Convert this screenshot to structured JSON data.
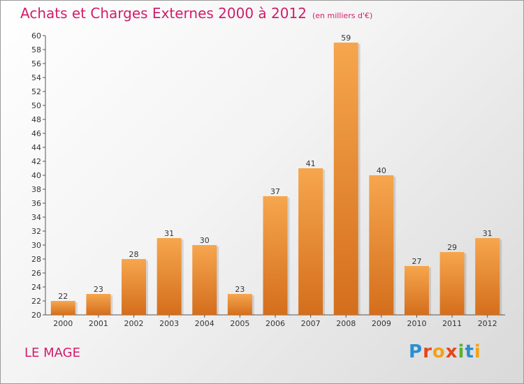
{
  "header": {
    "title": "Achats et Charges Externes 2000 à 2012",
    "subtitle": "(en milliers d'€)"
  },
  "footer": {
    "place": "LE MAGE",
    "logo": "Proxiti"
  },
  "colors": {
    "title": "#d21c6a",
    "bar_light": "#f6a64e",
    "bar_dark": "#d46e1c"
  },
  "chart_data": {
    "type": "bar",
    "title": "Achats et Charges Externes 2000 à 2012",
    "subtitle": "(en milliers d'€)",
    "categories": [
      "2000",
      "2001",
      "2002",
      "2003",
      "2004",
      "2005",
      "2006",
      "2007",
      "2008",
      "2009",
      "2010",
      "2011",
      "2012"
    ],
    "values": [
      22,
      23,
      28,
      31,
      30,
      23,
      37,
      41,
      59,
      40,
      27,
      29,
      31
    ],
    "ylim": [
      20,
      60
    ],
    "ytick_step": 2,
    "grid": false,
    "data_labels": true
  }
}
